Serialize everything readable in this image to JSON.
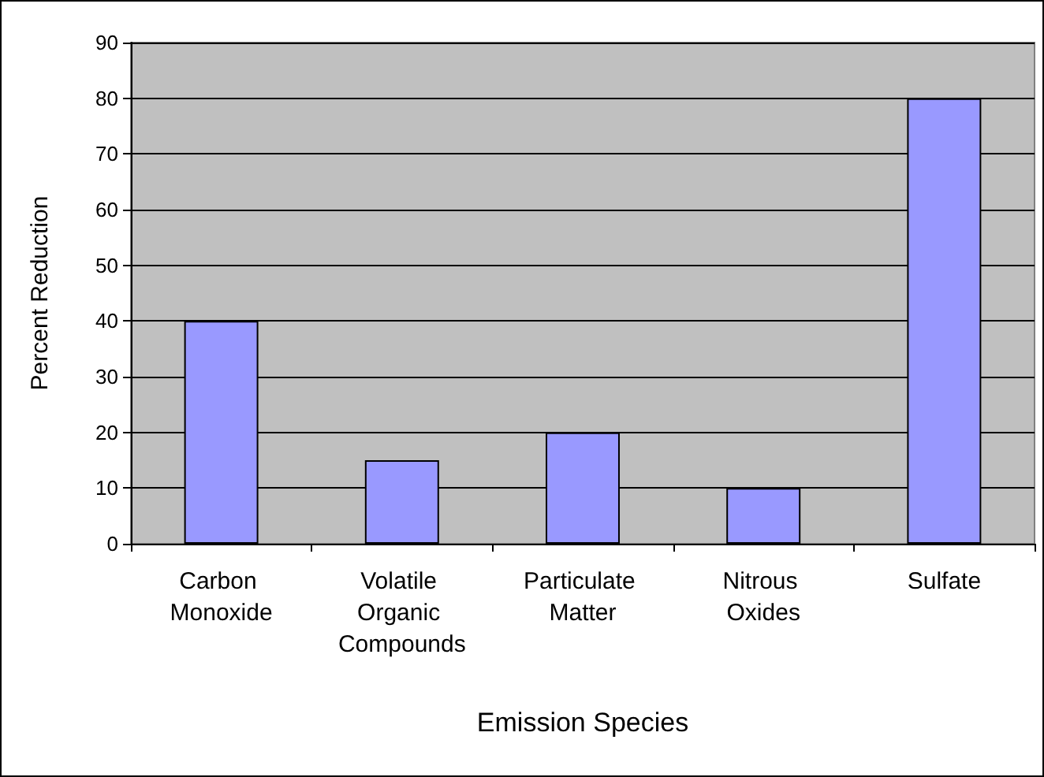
{
  "chart_data": {
    "type": "bar",
    "xlabel": "Emission Species",
    "ylabel": "Percent Reduction",
    "categories": [
      "Carbon Monoxide",
      "Volatile Organic Compounds",
      "Particulate Matter",
      "Nitrous Oxides",
      "Sulfate"
    ],
    "values": [
      40,
      15,
      20,
      10,
      80
    ],
    "color": "#9999ff",
    "ylim": [
      0,
      90
    ],
    "yticks": [
      0,
      10,
      20,
      30,
      40,
      50,
      60,
      70,
      80,
      90
    ],
    "grid": "y"
  }
}
